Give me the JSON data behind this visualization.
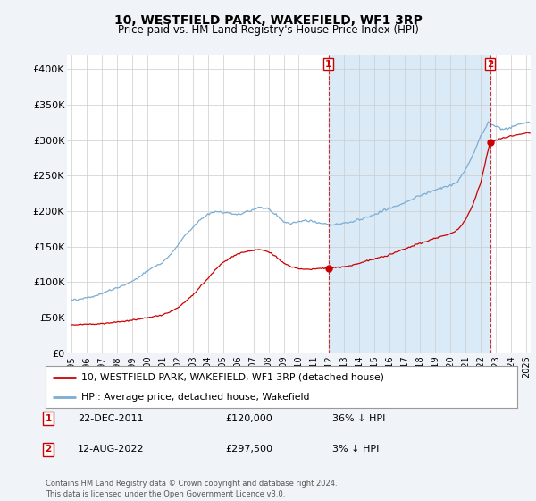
{
  "title": "10, WESTFIELD PARK, WAKEFIELD, WF1 3RP",
  "subtitle": "Price paid vs. HM Land Registry's House Price Index (HPI)",
  "footer": "Contains HM Land Registry data © Crown copyright and database right 2024.\nThis data is licensed under the Open Government Licence v3.0.",
  "legend_line1": "10, WESTFIELD PARK, WAKEFIELD, WF1 3RP (detached house)",
  "legend_line2": "HPI: Average price, detached house, Wakefield",
  "annotation1_date": "22-DEC-2011",
  "annotation1_price": "£120,000",
  "annotation1_hpi": "36% ↓ HPI",
  "annotation2_date": "12-AUG-2022",
  "annotation2_price": "£297,500",
  "annotation2_hpi": "3% ↓ HPI",
  "hpi_color": "#7aadd4",
  "hpi_fill_color": "#daeaf7",
  "price_color": "#cc0000",
  "annotation_color": "#cc0000",
  "background_color": "#f0f4f8",
  "plot_bg_color": "#ffffff",
  "ylim": [
    0,
    420000
  ],
  "yticks": [
    0,
    50000,
    100000,
    150000,
    200000,
    250000,
    300000,
    350000,
    400000
  ],
  "ytick_labels": [
    "£0",
    "£50K",
    "£100K",
    "£150K",
    "£200K",
    "£250K",
    "£300K",
    "£350K",
    "£400K"
  ],
  "sale1_x": 2011.97,
  "sale1_y": 120000,
  "sale2_x": 2022.62,
  "sale2_y": 297500,
  "xmin": 1995.0,
  "xmax": 2025.3
}
